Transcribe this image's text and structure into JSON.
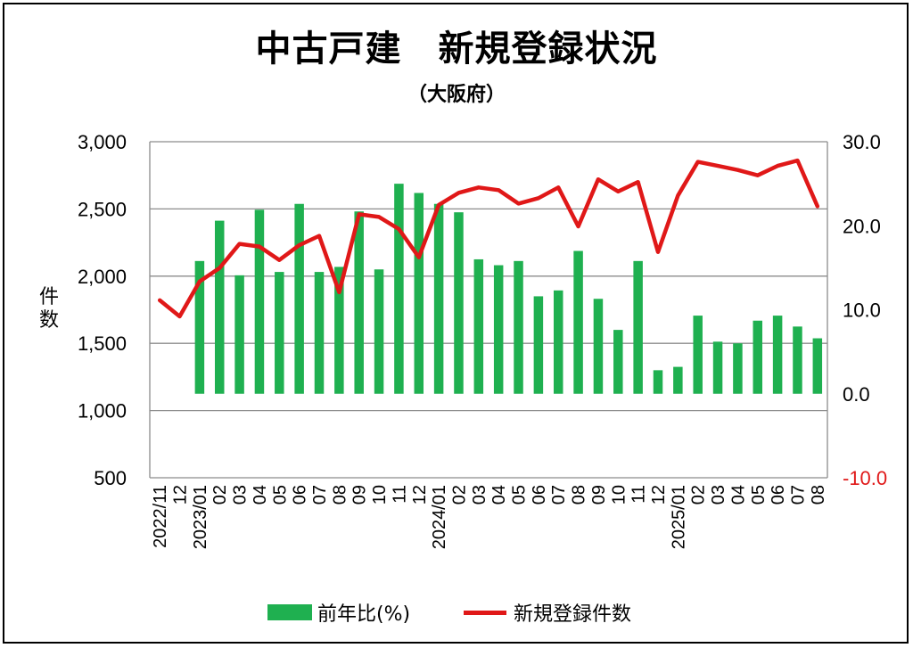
{
  "title": "中古戸建　新規登録状況",
  "subtitle": "（大阪府）",
  "chart_data": {
    "type": "bar",
    "categories": [
      "2022/11",
      "12",
      "2023/01",
      "02",
      "03",
      "04",
      "05",
      "06",
      "07",
      "08",
      "09",
      "10",
      "11",
      "12",
      "2024/01",
      "02",
      "03",
      "04",
      "05",
      "06",
      "07",
      "08",
      "09",
      "10",
      "11",
      "12",
      "2025/01",
      "02",
      "03",
      "04",
      "05",
      "06",
      "07",
      "08"
    ],
    "left_axis": {
      "label": "件数",
      "min": 500,
      "max": 3000,
      "ticks": [
        "500",
        "1,000",
        "1,500",
        "2,000",
        "2,500",
        "3,000"
      ]
    },
    "right_axis": {
      "min": -10,
      "max": 30,
      "ticks": [
        "-10.0",
        "0.0",
        "10.0",
        "20.0",
        "30.0"
      ]
    },
    "grid": true,
    "legend": "bottom",
    "series": [
      {
        "name": "前年比(%)",
        "type": "bar",
        "axis": "right",
        "color": "#1fb050",
        "values": [
          null,
          null,
          15.8,
          20.6,
          14.1,
          21.9,
          14.5,
          22.6,
          14.5,
          15.1,
          21.7,
          14.8,
          25.0,
          23.9,
          22.6,
          21.6,
          16.0,
          15.3,
          15.8,
          11.6,
          12.3,
          17.0,
          11.3,
          7.6,
          15.8,
          2.8,
          3.2,
          9.3,
          6.2,
          6.0,
          8.7,
          9.3,
          8.0,
          6.6
        ]
      },
      {
        "name": "新規登録件数",
        "type": "line",
        "axis": "left",
        "color": "#e01818",
        "values": [
          1820,
          1700,
          1960,
          2060,
          2240,
          2220,
          2120,
          2230,
          2300,
          1880,
          2460,
          2440,
          2350,
          2140,
          2530,
          2620,
          2660,
          2640,
          2540,
          2580,
          2660,
          2370,
          2720,
          2630,
          2700,
          2180,
          2600,
          2850,
          2820,
          2790,
          2750,
          2820,
          2860,
          2520
        ]
      }
    ]
  },
  "legend": {
    "bar_label": "前年比(%)",
    "line_label": "新規登録件数"
  },
  "colors": {
    "bar": "#1fb050",
    "line": "#e01818",
    "negative_tick": "#e01818",
    "grid": "#8c8c8c"
  }
}
